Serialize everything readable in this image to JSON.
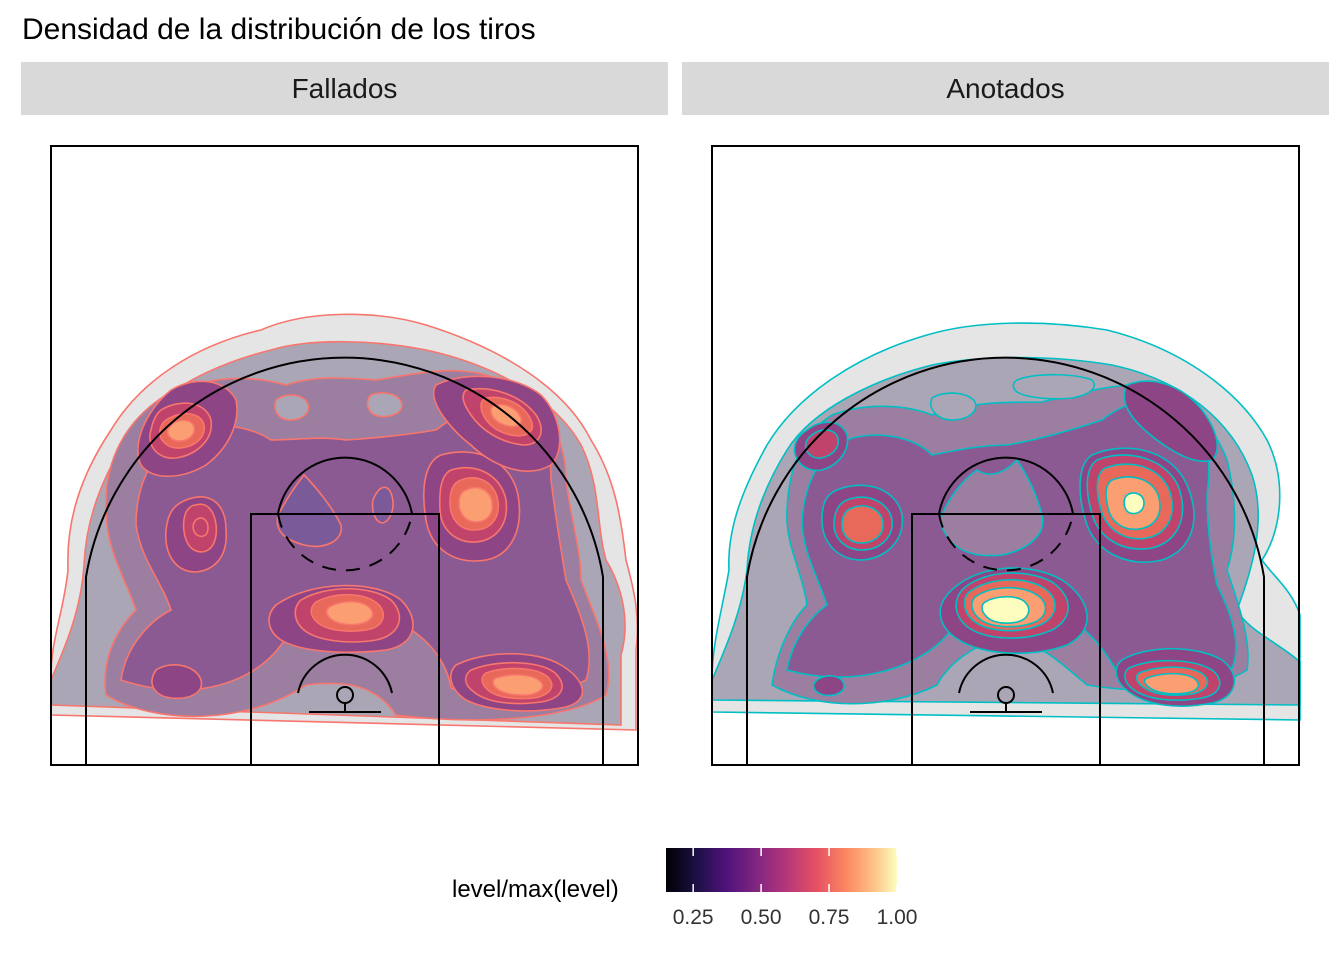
{
  "chart_data": {
    "type": "heatmap",
    "title": "Densidad de la distribución de los tiros",
    "facets": [
      {
        "label": "Fallados",
        "outline_color": "#f8766d",
        "hotspots": [
          {
            "zone": "esquina superior izquierda",
            "level": 0.85
          },
          {
            "zone": "ala superior derecha",
            "level": 0.8
          },
          {
            "zone": "codo izquierdo",
            "level": 0.7
          },
          {
            "zone": "codo derecho",
            "level": 0.9
          },
          {
            "zone": "bajo el aro / pintura",
            "level": 0.85
          },
          {
            "zone": "esquina inferior derecha",
            "level": 0.9
          },
          {
            "zone": "esquina inferior izquierda",
            "level": 0.6
          }
        ]
      },
      {
        "label": "Anotados",
        "outline_color": "#00bfc4",
        "hotspots": [
          {
            "zone": "bajo el aro / pintura",
            "level": 1.0
          },
          {
            "zone": "codo derecho",
            "level": 1.0
          },
          {
            "zone": "codo izquierdo",
            "level": 0.7
          },
          {
            "zone": "esquina inferior derecha",
            "level": 0.85
          },
          {
            "zone": "esquina superior izquierda",
            "level": 0.7
          },
          {
            "zone": "esquina inferior izquierda",
            "level": 0.5
          }
        ]
      }
    ],
    "legend": {
      "title": "level/max(level)",
      "scale": "magma",
      "ticks": [
        "0.25",
        "0.50",
        "0.75",
        "1.00"
      ],
      "tick_values": [
        0.25,
        0.5,
        0.75,
        1.0
      ],
      "range": [
        0.15,
        1.0
      ],
      "placement": "bottom"
    }
  }
}
